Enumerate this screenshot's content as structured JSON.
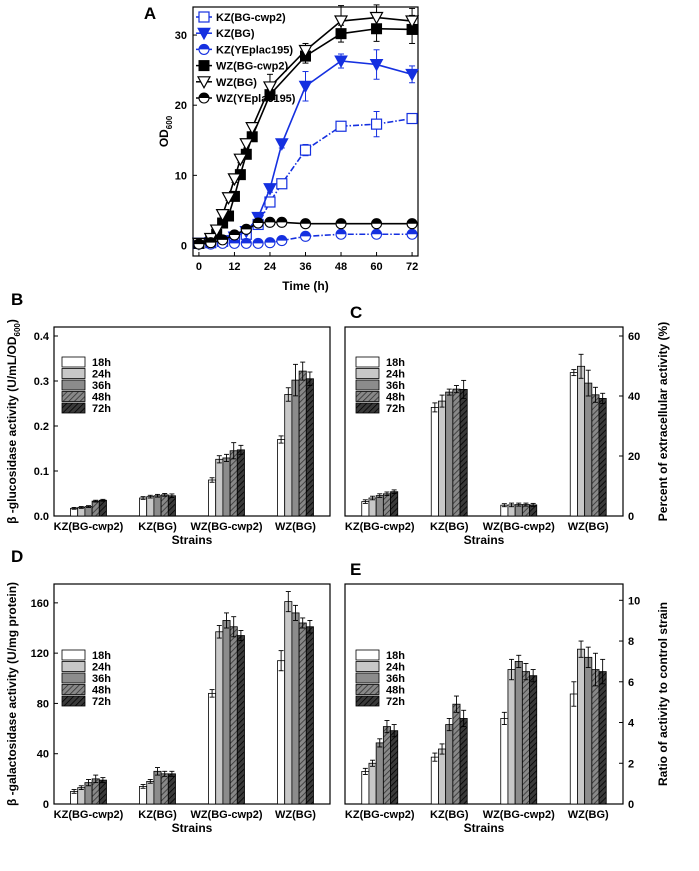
{
  "chart_data": [
    {
      "id": "A",
      "panel_label": "A",
      "type": "line",
      "xlabel": "Time (h)",
      "ylabel_main": "OD",
      "ylabel_sub": "600",
      "xlim": [
        -2,
        74
      ],
      "ylim": [
        -1.5,
        34
      ],
      "xticks": [
        0,
        12,
        24,
        36,
        48,
        60,
        72
      ],
      "yticks": [
        0,
        10,
        20,
        30
      ],
      "x": [
        0,
        4,
        6,
        8,
        10,
        12,
        14,
        16,
        18,
        20,
        24,
        28,
        36,
        48,
        60,
        72
      ],
      "series": [
        {
          "name": "KZ(BG-cwp2)",
          "marker": "square-open",
          "color": "#1530e0",
          "line": "dashdot",
          "x": [
            0,
            4,
            8,
            12,
            16,
            20,
            24,
            28,
            36,
            48,
            60,
            72
          ],
          "values": [
            0.3,
            0.4,
            0.6,
            1.0,
            1.6,
            3.0,
            6.2,
            8.8,
            13.6,
            17.0,
            17.3,
            18.1
          ],
          "err": [
            0.1,
            0.1,
            0.1,
            0.2,
            0.2,
            0.3,
            0.5,
            0.5,
            0.8,
            0.6,
            1.8,
            0.7
          ]
        },
        {
          "name": "KZ(BG)",
          "marker": "triangle-down-filled",
          "color": "#1530e0",
          "line": "solid",
          "x": [
            0,
            4,
            8,
            12,
            16,
            20,
            24,
            28,
            36,
            48,
            60,
            72
          ],
          "values": [
            0.3,
            0.4,
            0.7,
            1.2,
            2.0,
            4.0,
            8.1,
            14.5,
            22.7,
            26.3,
            25.8,
            24.4
          ],
          "err": [
            0.1,
            0.1,
            0.1,
            0.2,
            0.2,
            0.3,
            0.5,
            0.6,
            2.1,
            1.0,
            2.1,
            1.2
          ]
        },
        {
          "name": "KZ(YEplac195)",
          "marker": "circle-half",
          "color": "#1530e0",
          "line": "dashdot",
          "x": [
            0,
            4,
            8,
            12,
            16,
            20,
            24,
            28,
            36,
            48,
            60,
            72
          ],
          "values": [
            0.2,
            0.2,
            0.3,
            0.3,
            0.3,
            0.3,
            0.4,
            0.7,
            1.3,
            1.6,
            1.6,
            1.6
          ],
          "err": [
            0.05,
            0.05,
            0.05,
            0.05,
            0.05,
            0.05,
            0.1,
            0.1,
            0.2,
            0.2,
            0.2,
            0.2
          ]
        },
        {
          "name": "WZ(BG-cwp2)",
          "marker": "square-filled",
          "color": "#000000",
          "line": "solid",
          "x": [
            0,
            4,
            6,
            8,
            10,
            12,
            14,
            16,
            18,
            24,
            36,
            48,
            60,
            72
          ],
          "values": [
            0.3,
            0.8,
            1.6,
            3.2,
            4.2,
            7.0,
            10.1,
            13.0,
            15.5,
            21.5,
            27.0,
            30.2,
            30.9,
            30.8
          ],
          "err": [
            0.1,
            0.1,
            0.2,
            0.2,
            0.3,
            0.5,
            0.5,
            0.5,
            0.6,
            0.8,
            1.0,
            1.2,
            1.8,
            2.0
          ]
        },
        {
          "name": "WZ(BG)",
          "marker": "triangle-down-open",
          "color": "#000000",
          "line": "solid",
          "x": [
            0,
            4,
            6,
            8,
            10,
            12,
            14,
            16,
            18,
            24,
            36,
            48,
            60,
            72
          ],
          "values": [
            0.3,
            1.0,
            2.2,
            4.4,
            6.8,
            9.5,
            12.3,
            14.5,
            16.8,
            22.6,
            27.8,
            32.0,
            32.5,
            32.0
          ],
          "err": [
            0.1,
            0.1,
            0.2,
            0.3,
            0.4,
            0.5,
            0.5,
            0.6,
            0.6,
            1.8,
            1.0,
            2.2,
            1.8,
            1.8
          ]
        },
        {
          "name": "WZ(YEplac195)",
          "marker": "circle-half-black",
          "color": "#000000",
          "line": "solid",
          "x": [
            0,
            4,
            8,
            12,
            16,
            20,
            24,
            28,
            36,
            48,
            60,
            72
          ],
          "values": [
            0.2,
            0.4,
            0.8,
            1.5,
            2.3,
            3.2,
            3.3,
            3.3,
            3.1,
            3.1,
            3.1,
            3.1
          ],
          "err": [
            0.05,
            0.1,
            0.1,
            0.2,
            0.2,
            0.2,
            0.2,
            0.2,
            0.2,
            0.2,
            0.2,
            0.2
          ]
        }
      ]
    },
    {
      "id": "B",
      "panel_label": "B",
      "type": "bar",
      "xlabel": "Strains",
      "ylabel": "β -glucosidase activity (U/mL/OD",
      "ylabel_sub": "600",
      "ylabel_end": ")",
      "axis_side": "left",
      "ylim": [
        0,
        0.42
      ],
      "yticks": [
        "0.0",
        "0.1",
        "0.2",
        "0.3",
        "0.4"
      ],
      "categories": [
        "KZ(BG-cwp2)",
        "KZ(BG)",
        "WZ(BG-cwp2)",
        "WZ(BG)"
      ],
      "legend": [
        "18h",
        "24h",
        "36h",
        "48h",
        "72h"
      ],
      "series": [
        {
          "name": "18h",
          "values": [
            0.017,
            0.04,
            0.08,
            0.17
          ],
          "err": [
            0.002,
            0.003,
            0.005,
            0.008
          ]
        },
        {
          "name": "24h",
          "values": [
            0.019,
            0.043,
            0.126,
            0.27
          ],
          "err": [
            0.002,
            0.003,
            0.008,
            0.015
          ]
        },
        {
          "name": "36h",
          "values": [
            0.021,
            0.045,
            0.129,
            0.302
          ],
          "err": [
            0.002,
            0.003,
            0.008,
            0.035
          ]
        },
        {
          "name": "48h",
          "values": [
            0.033,
            0.047,
            0.145,
            0.322
          ],
          "err": [
            0.002,
            0.003,
            0.018,
            0.02
          ]
        },
        {
          "name": "72h",
          "values": [
            0.035,
            0.045,
            0.147,
            0.305
          ],
          "err": [
            0.002,
            0.004,
            0.01,
            0.015
          ]
        }
      ]
    },
    {
      "id": "C",
      "panel_label": "C",
      "type": "bar",
      "xlabel": "Strains",
      "ylabel": "Percent of extracellular activity (%)",
      "axis_side": "right",
      "ylim": [
        0,
        63
      ],
      "yticks": [
        "0",
        "20",
        "40",
        "60"
      ],
      "categories": [
        "KZ(BG-cwp2)",
        "KZ(BG)",
        "WZ(BG-cwp2)",
        "WZ(BG)"
      ],
      "legend": [
        "18h",
        "24h",
        "36h",
        "48h",
        "72h"
      ],
      "series": [
        {
          "name": "18h",
          "values": [
            4.8,
            36.2,
            3.6,
            47.8
          ],
          "err": [
            0.6,
            1.5,
            0.5,
            1.0
          ]
        },
        {
          "name": "24h",
          "values": [
            6.0,
            38.3,
            3.7,
            49.9
          ],
          "err": [
            0.6,
            2.0,
            0.6,
            4.0
          ]
        },
        {
          "name": "36h",
          "values": [
            6.8,
            41.3,
            3.8,
            44.3
          ],
          "err": [
            0.6,
            1.0,
            0.5,
            4.3
          ]
        },
        {
          "name": "48h",
          "values": [
            7.4,
            42.3,
            3.8,
            40.4
          ],
          "err": [
            0.6,
            1.2,
            0.5,
            2.5
          ]
        },
        {
          "name": "72h",
          "values": [
            8.1,
            42.2,
            3.7,
            39.2
          ],
          "err": [
            0.6,
            3.0,
            0.5,
            1.7
          ]
        }
      ]
    },
    {
      "id": "D",
      "panel_label": "D",
      "type": "bar",
      "xlabel": "Strains",
      "ylabel": "β -galactosidase activity (U/mg protein)",
      "axis_side": "left",
      "ylim": [
        0,
        175
      ],
      "yticks": [
        "0",
        "40",
        "80",
        "120",
        "160"
      ],
      "categories": [
        "KZ(BG-cwp2)",
        "KZ(BG)",
        "WZ(BG-cwp2)",
        "WZ(BG)"
      ],
      "legend": [
        "18h",
        "24h",
        "36h",
        "48h",
        "72h"
      ],
      "series": [
        {
          "name": "18h",
          "values": [
            10,
            14,
            88,
            114
          ],
          "err": [
            1.5,
            1.5,
            3,
            8
          ]
        },
        {
          "name": "24h",
          "values": [
            13,
            18,
            137,
            161
          ],
          "err": [
            1.5,
            1.5,
            5,
            8
          ]
        },
        {
          "name": "36h",
          "values": [
            17,
            26,
            146,
            152
          ],
          "err": [
            2.5,
            3,
            6,
            6
          ]
        },
        {
          "name": "48h",
          "values": [
            20,
            24,
            141,
            144
          ],
          "err": [
            3,
            2,
            8,
            4
          ]
        },
        {
          "name": "72h",
          "values": [
            19,
            24,
            134,
            141
          ],
          "err": [
            2,
            2,
            4,
            5
          ]
        }
      ]
    },
    {
      "id": "E",
      "panel_label": "E",
      "type": "bar",
      "xlabel": "Strains",
      "ylabel": "Ratio of activity to control strain",
      "axis_side": "right",
      "ylim": [
        0,
        10.8
      ],
      "yticks": [
        "0",
        "2",
        "4",
        "6",
        "8",
        "10"
      ],
      "categories": [
        "KZ(BG-cwp2)",
        "KZ(BG)",
        "WZ(BG-cwp2)",
        "WZ(BG)"
      ],
      "legend": [
        "18h",
        "24h",
        "36h",
        "48h",
        "72h"
      ],
      "series": [
        {
          "name": "18h",
          "values": [
            1.6,
            2.3,
            4.2,
            5.4
          ],
          "err": [
            0.15,
            0.2,
            0.3,
            0.6
          ]
        },
        {
          "name": "24h",
          "values": [
            2.0,
            2.7,
            6.6,
            7.6
          ],
          "err": [
            0.15,
            0.25,
            0.5,
            0.4
          ]
        },
        {
          "name": "36h",
          "values": [
            3.0,
            3.9,
            7.0,
            7.2
          ],
          "err": [
            0.2,
            0.3,
            0.3,
            0.5
          ]
        },
        {
          "name": "48h",
          "values": [
            3.8,
            4.9,
            6.5,
            6.6
          ],
          "err": [
            0.3,
            0.4,
            0.4,
            0.8
          ]
        },
        {
          "name": "72h",
          "values": [
            3.6,
            4.2,
            6.3,
            6.5
          ],
          "err": [
            0.3,
            0.4,
            0.3,
            0.6
          ]
        }
      ]
    }
  ]
}
